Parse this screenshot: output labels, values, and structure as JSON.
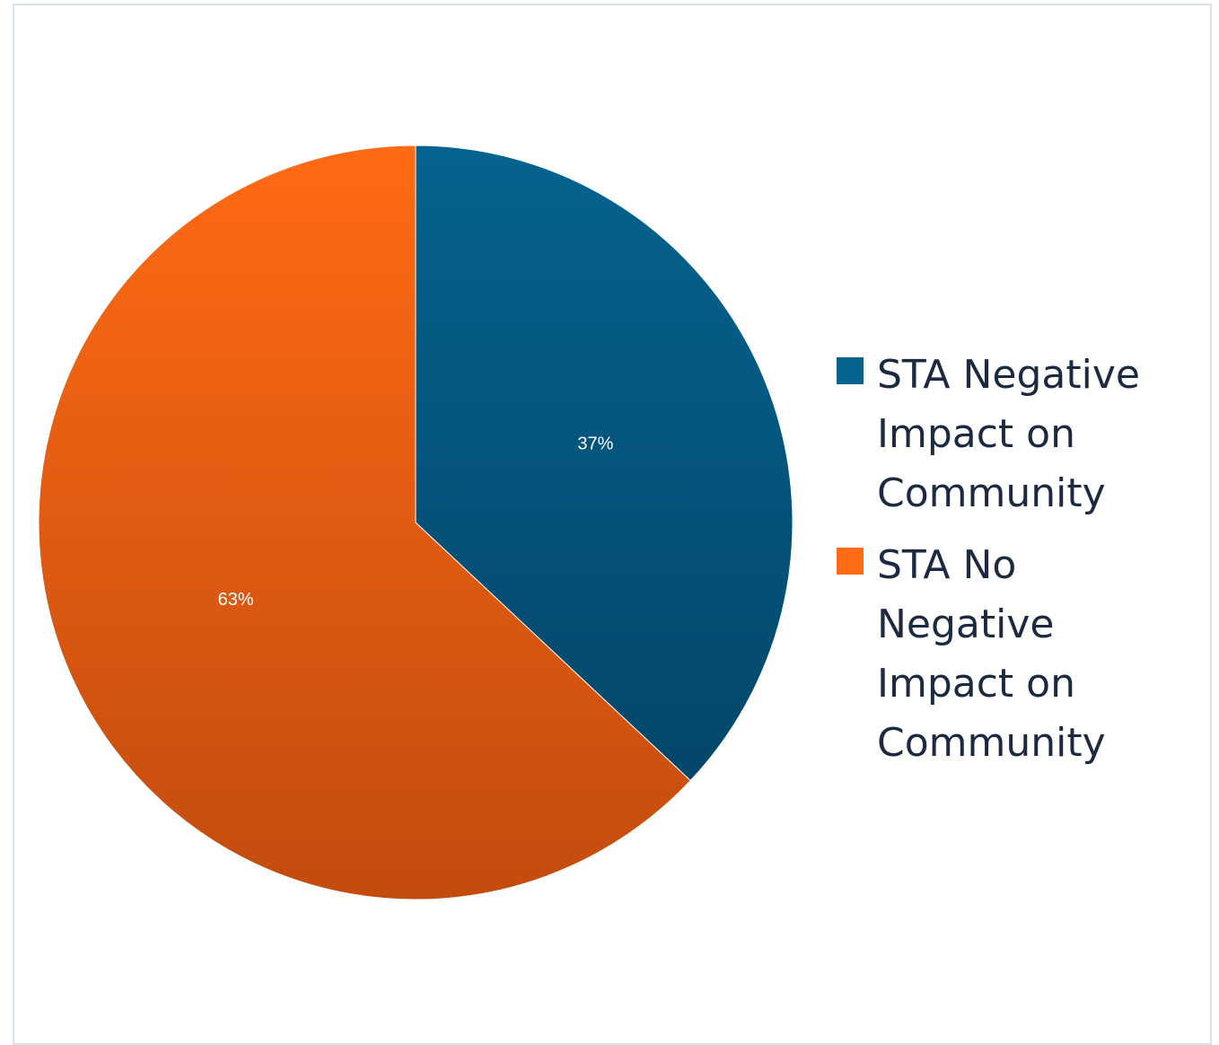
{
  "chart_data": {
    "type": "pie",
    "title": "",
    "legend_position": "right",
    "slices": [
      {
        "name": "STA Negative Impact on Community",
        "value": 37,
        "label": "37%",
        "color_top": "#06628f",
        "color_bottom": "#034769"
      },
      {
        "name": "STA No Negative Impact on Community",
        "value": 63,
        "label": "63%",
        "color_top": "#ff6a14",
        "color_bottom": "#c24c0e"
      }
    ]
  }
}
